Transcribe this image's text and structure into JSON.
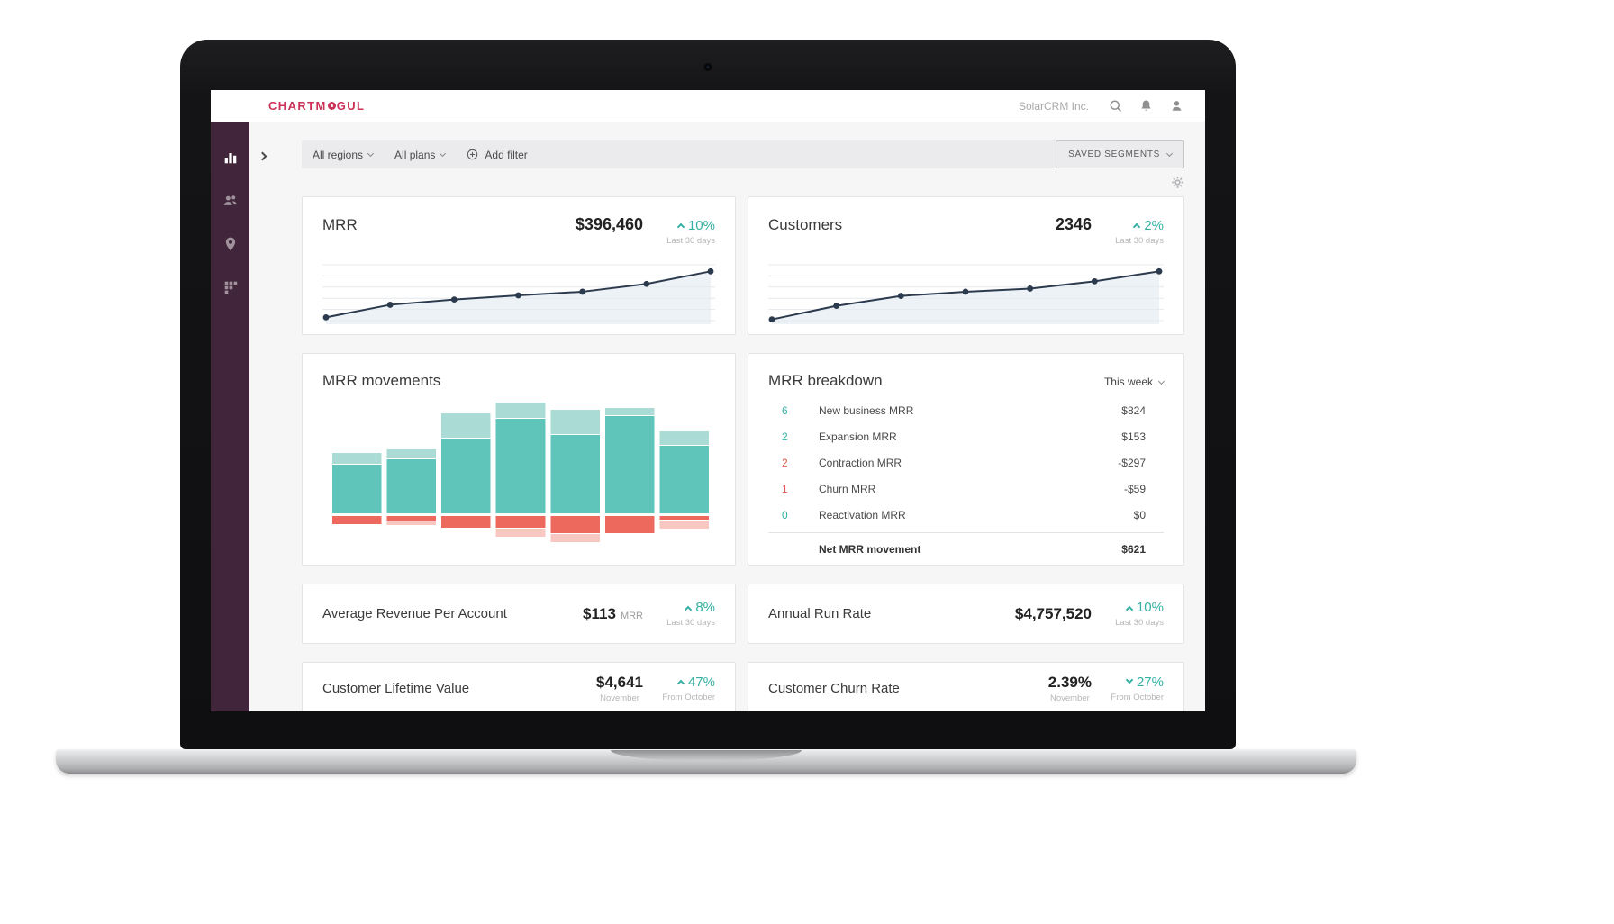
{
  "header": {
    "logo_pre": "CHARTM",
    "logo_o": "O",
    "logo_post": "GUL",
    "account_name": "SolarCRM Inc.",
    "icons": [
      "search-icon",
      "notifications-icon",
      "user-icon"
    ]
  },
  "sidebar": {
    "icons": [
      "bar-chart-icon",
      "customers-icon",
      "geo-map-icon",
      "segments-icon"
    ]
  },
  "filter_bar": {
    "filters": [
      {
        "label": "All regions"
      },
      {
        "label": "All plans"
      }
    ],
    "add_filter_label": "Add filter",
    "saved_segments_label": "SAVED SEGMENTS"
  },
  "cards": {
    "mrr": {
      "title": "MRR",
      "value": "$396,460",
      "change": "10%",
      "change_direction": "up",
      "period": "Last 30 days"
    },
    "customers": {
      "title": "Customers",
      "value": "2346",
      "change": "2%",
      "change_direction": "up",
      "period": "Last 30 days"
    },
    "movements": {
      "title": "MRR movements"
    },
    "breakdown": {
      "title": "MRR breakdown",
      "range_label": "This week",
      "rows": [
        {
          "count": "6",
          "count_color": "teal",
          "label": "New business MRR",
          "value": "$824"
        },
        {
          "count": "2",
          "count_color": "teal",
          "label": "Expansion MRR",
          "value": "$153"
        },
        {
          "count": "2",
          "count_color": "red",
          "label": "Contraction MRR",
          "value": "-$297"
        },
        {
          "count": "1",
          "count_color": "red",
          "label": "Churn MRR",
          "value": "-$59"
        },
        {
          "count": "0",
          "count_color": "teal",
          "label": "Reactivation MRR",
          "value": "$0"
        }
      ],
      "total_label": "Net MRR movement",
      "total_value": "$621"
    },
    "arpa": {
      "title": "Average Revenue Per Account",
      "value": "$113",
      "unit": "MRR",
      "change": "8%",
      "change_direction": "up",
      "period": "Last 30 days"
    },
    "run_rate": {
      "title": "Annual Run Rate",
      "value": "$4,757,520",
      "change": "10%",
      "change_direction": "up",
      "period": "Last 30 days"
    },
    "clv": {
      "title": "Customer Lifetime Value",
      "value": "$4,641",
      "value_period": "November",
      "change": "47%",
      "change_direction": "up",
      "period": "From October"
    },
    "churn_rate": {
      "title": "Customer Churn Rate",
      "value": "2.39%",
      "value_period": "November",
      "change": "27%",
      "change_direction": "down",
      "period": "From October"
    }
  },
  "colors": {
    "accent_teal": "#35b0a2",
    "negative_red": "#e2574c",
    "sidebar_plum": "#41253a",
    "logo_crimson": "#ca3258",
    "line_navy": "#2c3a4d"
  },
  "chart_data": [
    {
      "type": "line",
      "title": "MRR trend (sparkline, unlabeled axes)",
      "values": [
        8,
        32,
        42,
        50,
        57,
        72,
        96
      ],
      "ylim": [
        0,
        100
      ],
      "gridlines": 6,
      "legend": "none",
      "line_color": "#2c3a4d",
      "area_color": "#edf2f7",
      "grid_color": "#e4e9ee"
    },
    {
      "type": "line",
      "title": "Customers trend (sparkline, unlabeled axes)",
      "values": [
        4,
        30,
        49,
        57,
        63,
        77,
        96
      ],
      "ylim": [
        0,
        100
      ],
      "gridlines": 6,
      "legend": "none",
      "line_color": "#2c3a4d",
      "area_color": "#edf2f7",
      "grid_color": "#e4e9ee"
    },
    {
      "type": "bar",
      "stacked": true,
      "title": "MRR movements (7 periods, unlabeled axes, relative units)",
      "baseline": 126,
      "legend": "none",
      "series": [
        {
          "name": "expansion",
          "color": "#5fc4b9",
          "values": [
            55,
            61,
            84,
            106,
            88,
            109,
            76
          ]
        },
        {
          "name": "new-business",
          "color": "#aadcd5",
          "values": [
            13,
            11,
            28,
            18,
            28,
            9,
            16
          ]
        },
        {
          "name": "contraction",
          "color": "#ed685d",
          "values": [
            -10,
            -6,
            -14,
            -14,
            -20,
            -20,
            -5
          ]
        },
        {
          "name": "churn",
          "color": "#f8c7c1",
          "values": [
            0,
            -5,
            0,
            -10,
            -10,
            0,
            -10
          ]
        }
      ]
    }
  ]
}
